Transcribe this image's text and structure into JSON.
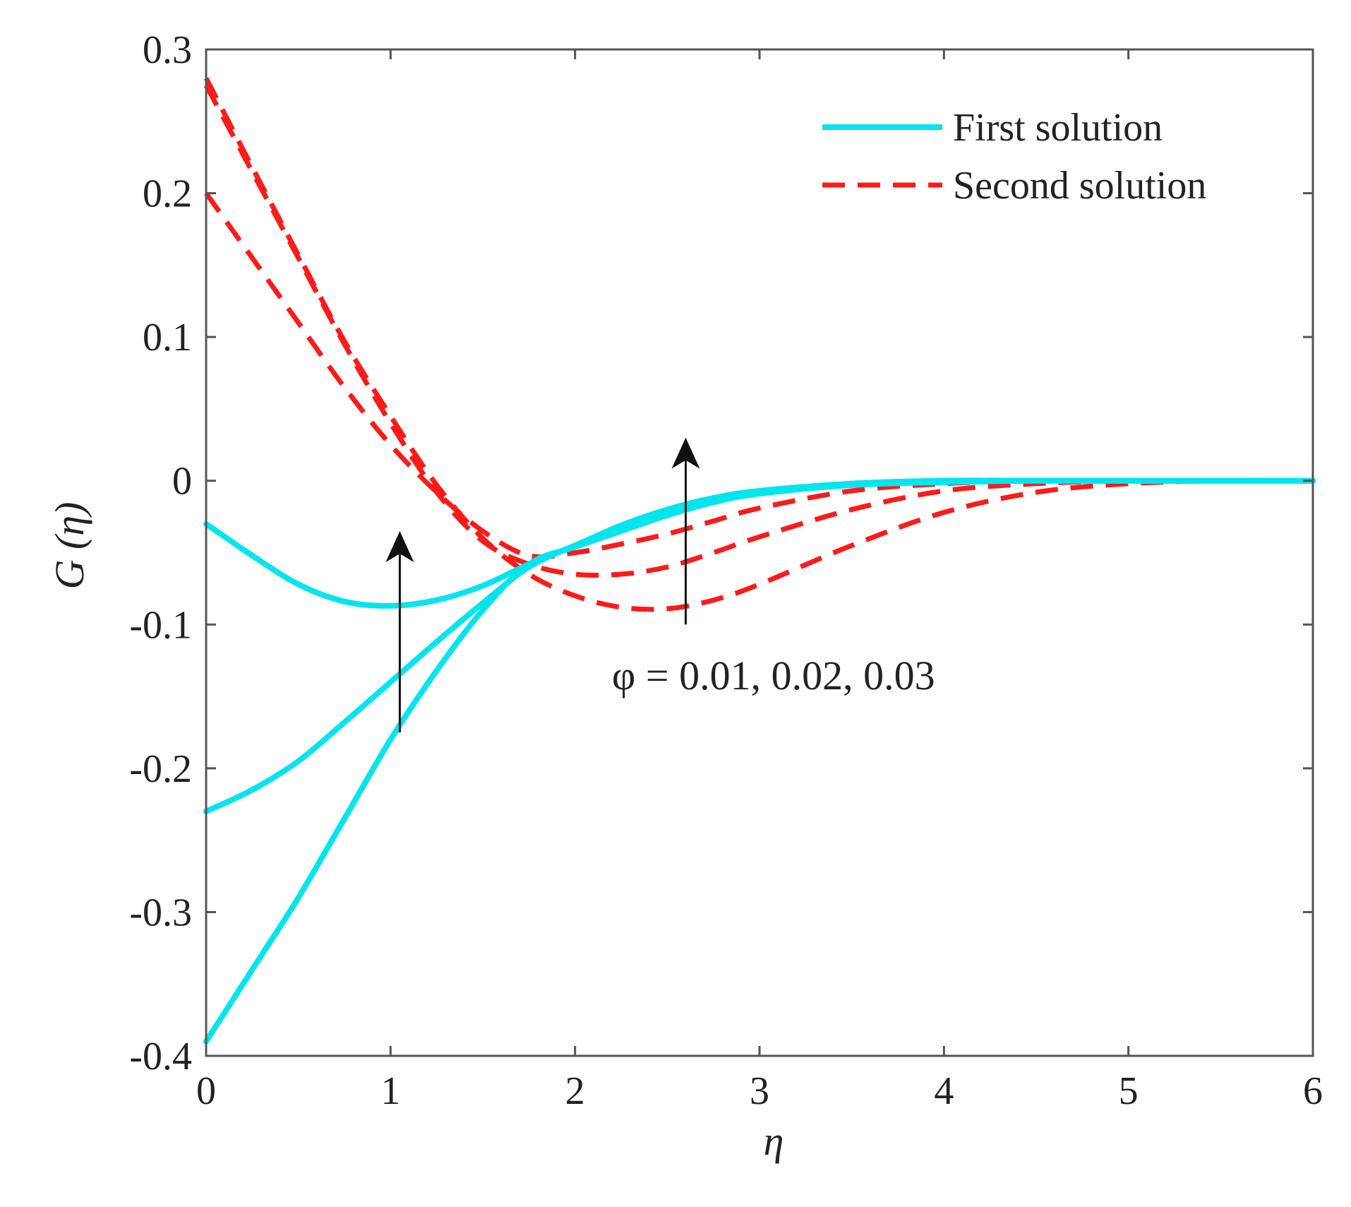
{
  "chart_data": {
    "type": "line",
    "title": "",
    "xlabel": "η",
    "ylabel": "G (η)",
    "xlim": [
      0,
      6
    ],
    "ylim": [
      -0.4,
      0.3
    ],
    "xticks": [
      "0",
      "1",
      "2",
      "3",
      "4",
      "5",
      "6"
    ],
    "yticks": [
      "0.3",
      "0.2",
      "0.1",
      "0",
      "-0.1",
      "-0.2",
      "-0.3",
      "-0.4"
    ],
    "xtick_values": [
      0,
      1,
      2,
      3,
      4,
      5,
      6
    ],
    "ytick_values": [
      0.3,
      0.2,
      0.1,
      0,
      -0.1,
      -0.2,
      -0.3,
      -0.4
    ],
    "grid": false,
    "legend_position": "top-right",
    "legend": [
      {
        "label": "First solution",
        "color": "#00e5ee",
        "style": "solid"
      },
      {
        "label": "Second solution",
        "color": "#ff1a1a",
        "style": "dashed"
      }
    ],
    "annotation": {
      "text": "φ = 0.01, 0.02, 0.03",
      "arrows": [
        {
          "x": 1.05,
          "y_from": -0.175,
          "y_to": -0.035
        },
        {
          "x": 2.6,
          "y_from": -0.1,
          "y_to": 0.03
        }
      ]
    },
    "series": [
      {
        "name": "First solution (φ = 0.01)",
        "group": "First solution",
        "color": "#00e5ee",
        "style": "solid",
        "x": [
          0,
          0.25,
          0.5,
          0.75,
          1.0,
          1.25,
          1.5,
          1.75,
          2.0,
          2.25,
          2.5,
          2.75,
          3.0,
          3.5,
          4.0,
          4.5,
          5.0,
          5.5,
          6.0
        ],
        "y": [
          -0.03,
          -0.052,
          -0.072,
          -0.084,
          -0.087,
          -0.083,
          -0.073,
          -0.058,
          -0.045,
          -0.031,
          -0.02,
          -0.012,
          -0.007,
          -0.002,
          0.0,
          0.0,
          0.0,
          0.0,
          0.0
        ]
      },
      {
        "name": "First solution (φ = 0.02)",
        "group": "First solution",
        "color": "#00e5ee",
        "style": "solid",
        "x": [
          0,
          0.25,
          0.5,
          0.75,
          1.0,
          1.25,
          1.5,
          1.75,
          2.0,
          2.25,
          2.5,
          2.75,
          3.0,
          3.5,
          4.0,
          4.5,
          5.0,
          5.5,
          6.0
        ],
        "y": [
          -0.23,
          -0.215,
          -0.195,
          -0.168,
          -0.14,
          -0.112,
          -0.085,
          -0.06,
          -0.045,
          -0.033,
          -0.022,
          -0.014,
          -0.008,
          -0.002,
          0.0,
          0.0,
          0.0,
          0.0,
          0.0
        ]
      },
      {
        "name": "First solution (φ = 0.03)",
        "group": "First solution",
        "color": "#00e5ee",
        "style": "solid",
        "x": [
          0,
          0.25,
          0.5,
          0.75,
          1.0,
          1.25,
          1.5,
          1.75,
          2.0,
          2.25,
          2.5,
          2.75,
          3.0,
          3.5,
          4.0,
          4.5,
          5.0,
          5.5,
          6.0
        ],
        "y": [
          -0.39,
          -0.34,
          -0.29,
          -0.235,
          -0.18,
          -0.132,
          -0.09,
          -0.058,
          -0.046,
          -0.035,
          -0.024,
          -0.015,
          -0.009,
          -0.003,
          -0.001,
          0.0,
          0.0,
          0.0,
          0.0
        ]
      },
      {
        "name": "Second solution (φ = 0.01)",
        "group": "Second solution",
        "color": "#ff1a1a",
        "style": "dashed",
        "x": [
          0,
          0.25,
          0.5,
          0.75,
          1.0,
          1.25,
          1.5,
          1.75,
          2.0,
          2.25,
          2.5,
          2.75,
          3.0,
          3.5,
          4.0,
          4.5,
          5.0,
          5.5,
          6.0
        ],
        "y": [
          0.2,
          0.155,
          0.11,
          0.065,
          0.025,
          -0.008,
          -0.035,
          -0.052,
          -0.05,
          -0.044,
          -0.037,
          -0.028,
          -0.019,
          -0.007,
          -0.002,
          0.0,
          0.0,
          0.0,
          0.0
        ]
      },
      {
        "name": "Second solution (φ = 0.02)",
        "group": "Second solution",
        "color": "#ff1a1a",
        "style": "dashed",
        "x": [
          0,
          0.25,
          0.5,
          0.75,
          1.0,
          1.25,
          1.5,
          1.75,
          2.0,
          2.25,
          2.5,
          2.75,
          3.0,
          3.5,
          4.0,
          4.5,
          5.0,
          5.5,
          6.0
        ],
        "y": [
          0.275,
          0.215,
          0.155,
          0.095,
          0.04,
          -0.008,
          -0.042,
          -0.058,
          -0.065,
          -0.065,
          -0.06,
          -0.05,
          -0.039,
          -0.02,
          -0.007,
          -0.002,
          0.0,
          0.0,
          0.0
        ]
      },
      {
        "name": "Second solution (φ = 0.03)",
        "group": "Second solution",
        "color": "#ff1a1a",
        "style": "dashed",
        "x": [
          0,
          0.25,
          0.5,
          0.75,
          1.0,
          1.25,
          1.5,
          1.75,
          2.0,
          2.25,
          2.5,
          2.75,
          3.0,
          3.5,
          4.0,
          4.5,
          5.0,
          5.5,
          6.0
        ],
        "y": [
          0.28,
          0.218,
          0.157,
          0.097,
          0.045,
          -0.003,
          -0.04,
          -0.065,
          -0.08,
          -0.088,
          -0.089,
          -0.083,
          -0.072,
          -0.045,
          -0.022,
          -0.008,
          -0.002,
          0.0,
          0.0
        ]
      }
    ]
  }
}
